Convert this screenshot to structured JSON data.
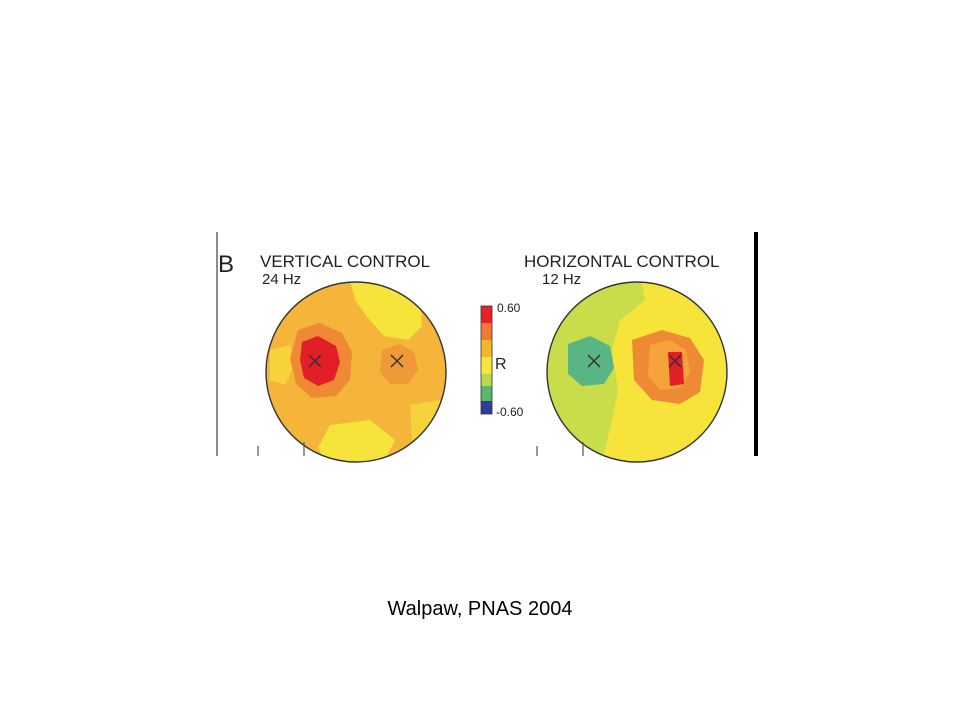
{
  "panel": {
    "label": "B",
    "maps": [
      {
        "title": "VERTICAL CONTROL",
        "frequency": "24 Hz"
      },
      {
        "title": "HORIZONTAL CONTROL",
        "frequency": "12 Hz"
      }
    ]
  },
  "colorbar": {
    "max_label": "0.60",
    "min_label": "-0.60",
    "variable_label": "R",
    "stops": [
      "#e8202a",
      "#f07a32",
      "#f7b52a",
      "#f6e83a",
      "#b9d84a",
      "#5ab86e",
      "#2f3c9a"
    ]
  },
  "colors": {
    "background_map": "#f5b43a",
    "red": "#e21f26",
    "orange": "#ef8a34",
    "yellow": "#f6e43b",
    "yellow_green": "#c9dc4a",
    "teal_green": "#59b684"
  },
  "caption": "Walpaw, PNAS 2004"
}
